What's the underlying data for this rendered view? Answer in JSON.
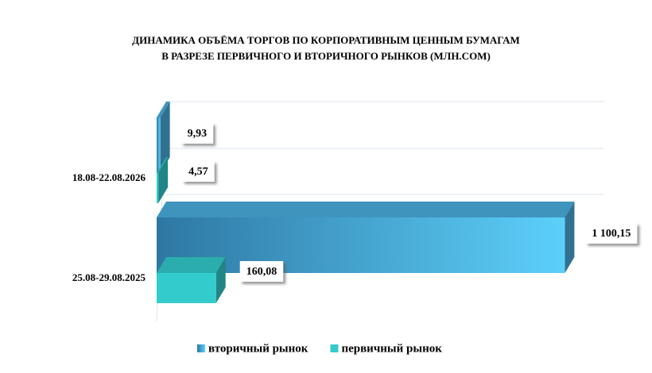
{
  "chart_data": {
    "type": "bar",
    "orientation": "horizontal",
    "title": [
      "ДИНАМИКА ОБЪЁМА ТОРГОВ ПО КОРПОРАТИВНЫМ ЦЕННЫМ БУМАГАМ",
      "В РАЗРЕЗЕ ПЕРВИЧНОГО И ВТОРИЧНОГО РЫНКОВ  (МЛН.СОМ)"
    ],
    "categories": [
      "18.08-22.08.2026",
      "25.08-29.08.2025"
    ],
    "series": [
      {
        "name": "вторичный рынок",
        "color": "#4aaee0",
        "values": [
          9.93,
          1100.15
        ],
        "value_labels": [
          "9,93",
          "1 100,15"
        ]
      },
      {
        "name": "первичный рынок",
        "color": "#33cccc",
        "values": [
          4.57,
          160.08
        ],
        "value_labels": [
          "4,57",
          "160,08"
        ]
      }
    ],
    "xlim": [
      0,
      1200
    ],
    "legend": "bottom"
  }
}
